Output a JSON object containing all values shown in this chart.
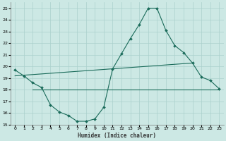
{
  "xlabel": "Humidex (Indice chaleur)",
  "xlim": [
    -0.5,
    23.5
  ],
  "ylim": [
    15,
    25.5
  ],
  "yticks": [
    15,
    16,
    17,
    18,
    19,
    20,
    21,
    22,
    23,
    24,
    25
  ],
  "xticks": [
    0,
    1,
    2,
    3,
    4,
    5,
    6,
    7,
    8,
    9,
    10,
    11,
    12,
    13,
    14,
    15,
    16,
    17,
    18,
    19,
    20,
    21,
    22,
    23
  ],
  "bg_color": "#cce8e4",
  "grid_color": "#aad0cc",
  "line_color": "#1a6b5a",
  "line1_x": [
    0,
    1,
    2,
    3,
    4,
    5,
    6,
    7,
    8,
    9,
    10,
    11,
    12,
    13,
    14,
    15,
    16,
    17,
    18,
    19,
    20,
    21,
    22,
    23
  ],
  "line1_y": [
    19.7,
    19.2,
    18.6,
    18.2,
    16.7,
    16.1,
    15.8,
    15.3,
    15.3,
    15.5,
    16.5,
    19.8,
    21.1,
    22.4,
    23.6,
    25.0,
    25.0,
    23.1,
    21.8,
    21.2,
    20.3,
    19.1,
    18.8,
    18.1
  ],
  "line2_x": [
    2,
    23
  ],
  "line2_y": [
    18.0,
    18.0
  ],
  "line3_x": [
    0,
    20
  ],
  "line3_y": [
    19.2,
    20.3
  ],
  "figsize": [
    3.2,
    2.0
  ],
  "dpi": 100
}
